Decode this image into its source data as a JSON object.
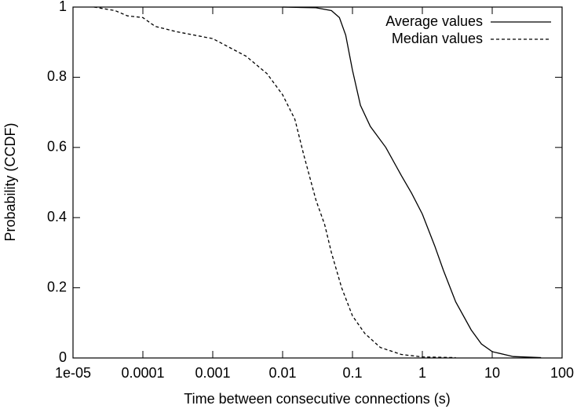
{
  "chart_data": {
    "type": "line",
    "xlabel": "Time between consecutive connections (s)",
    "ylabel": "Probability (CCDF)",
    "xscale": "log",
    "xlim": [
      1e-05,
      100
    ],
    "xticks": [
      {
        "value": 1e-05,
        "label": "1e-05"
      },
      0.0001,
      0.001,
      0.01,
      0.1,
      1,
      10,
      100
    ],
    "ylim": [
      0,
      1
    ],
    "yticks": [
      0,
      0.2,
      0.4,
      0.6,
      0.8,
      1
    ],
    "legend": "upper right",
    "series": [
      {
        "name": "Average values",
        "color": "#000000",
        "dash": "solid",
        "x": [
          0.01,
          0.03,
          0.05,
          0.065,
          0.08,
          0.1,
          0.13,
          0.18,
          0.3,
          0.5,
          0.7,
          1,
          1.5,
          2,
          3,
          5,
          7,
          10,
          20,
          50
        ],
        "values": [
          1,
          0.998,
          0.99,
          0.97,
          0.92,
          0.82,
          0.72,
          0.66,
          0.6,
          0.52,
          0.47,
          0.41,
          0.32,
          0.25,
          0.16,
          0.08,
          0.04,
          0.018,
          0.004,
          0.001
        ]
      },
      {
        "name": "Median values",
        "color": "#000000",
        "dash": "dashed",
        "x": [
          2e-05,
          4e-05,
          6e-05,
          0.0001,
          0.00015,
          0.0003,
          0.001,
          0.003,
          0.006,
          0.01,
          0.015,
          0.02,
          0.03,
          0.04,
          0.05,
          0.07,
          0.1,
          0.15,
          0.25,
          0.5,
          1,
          3
        ],
        "values": [
          1,
          0.99,
          0.975,
          0.97,
          0.945,
          0.93,
          0.91,
          0.86,
          0.81,
          0.75,
          0.68,
          0.58,
          0.45,
          0.38,
          0.3,
          0.2,
          0.12,
          0.07,
          0.03,
          0.01,
          0.003,
          0.001
        ]
      }
    ]
  }
}
